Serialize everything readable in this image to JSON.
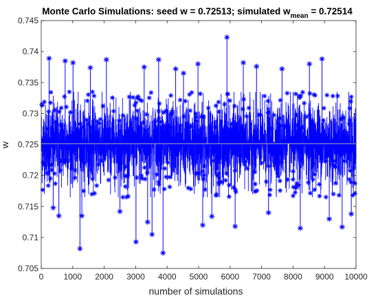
{
  "chart_data": {
    "type": "scatter",
    "title": {
      "main": "Monte Carlo Simulations: seed w = 0.72513; simulated w",
      "subscript": "mean",
      "suffix": " = 0.72514"
    },
    "xlabel": "number of simulations",
    "ylabel": "w",
    "xlim": [
      0,
      10000
    ],
    "ylim": [
      0.705,
      0.745
    ],
    "xticks": [
      "0",
      "1000",
      "2000",
      "3000",
      "4000",
      "5000",
      "6000",
      "7000",
      "8000",
      "9000",
      "10000"
    ],
    "yticks": [
      "0.705",
      "0.71",
      "0.715",
      "0.72",
      "0.725",
      "0.73",
      "0.735",
      "0.74",
      "0.745"
    ],
    "grid": false,
    "series": [
      {
        "marker": "asterisk",
        "stem_baseline": 0.72514,
        "n_points": 10000,
        "mean": 0.72514,
        "typical_range": [
          0.7185,
          0.7315
        ],
        "color": "#0000ff",
        "notable_points": [
          {
            "x": 250,
            "y": 0.7389
          },
          {
            "x": 380,
            "y": 0.7148
          },
          {
            "x": 560,
            "y": 0.7135
          },
          {
            "x": 760,
            "y": 0.7385
          },
          {
            "x": 1010,
            "y": 0.7382
          },
          {
            "x": 1230,
            "y": 0.7082
          },
          {
            "x": 1290,
            "y": 0.7135
          },
          {
            "x": 1560,
            "y": 0.7374
          },
          {
            "x": 2070,
            "y": 0.7387
          },
          {
            "x": 2500,
            "y": 0.7142
          },
          {
            "x": 3010,
            "y": 0.7093
          },
          {
            "x": 3270,
            "y": 0.7375
          },
          {
            "x": 3380,
            "y": 0.7125
          },
          {
            "x": 3520,
            "y": 0.7105
          },
          {
            "x": 3730,
            "y": 0.7387
          },
          {
            "x": 3870,
            "y": 0.7075
          },
          {
            "x": 4270,
            "y": 0.7372
          },
          {
            "x": 4520,
            "y": 0.7365
          },
          {
            "x": 4980,
            "y": 0.738
          },
          {
            "x": 5130,
            "y": 0.712
          },
          {
            "x": 5420,
            "y": 0.7134
          },
          {
            "x": 5900,
            "y": 0.7423
          },
          {
            "x": 6160,
            "y": 0.7118
          },
          {
            "x": 6420,
            "y": 0.7382
          },
          {
            "x": 6840,
            "y": 0.7376
          },
          {
            "x": 7220,
            "y": 0.714
          },
          {
            "x": 7650,
            "y": 0.7372
          },
          {
            "x": 8230,
            "y": 0.7115
          },
          {
            "x": 8520,
            "y": 0.738
          },
          {
            "x": 8920,
            "y": 0.7388
          },
          {
            "x": 9150,
            "y": 0.713
          },
          {
            "x": 9560,
            "y": 0.7117
          },
          {
            "x": 9850,
            "y": 0.7138
          }
        ]
      }
    ],
    "mean_line": {
      "y": 0.72514,
      "color": "#b0b0b0"
    }
  }
}
